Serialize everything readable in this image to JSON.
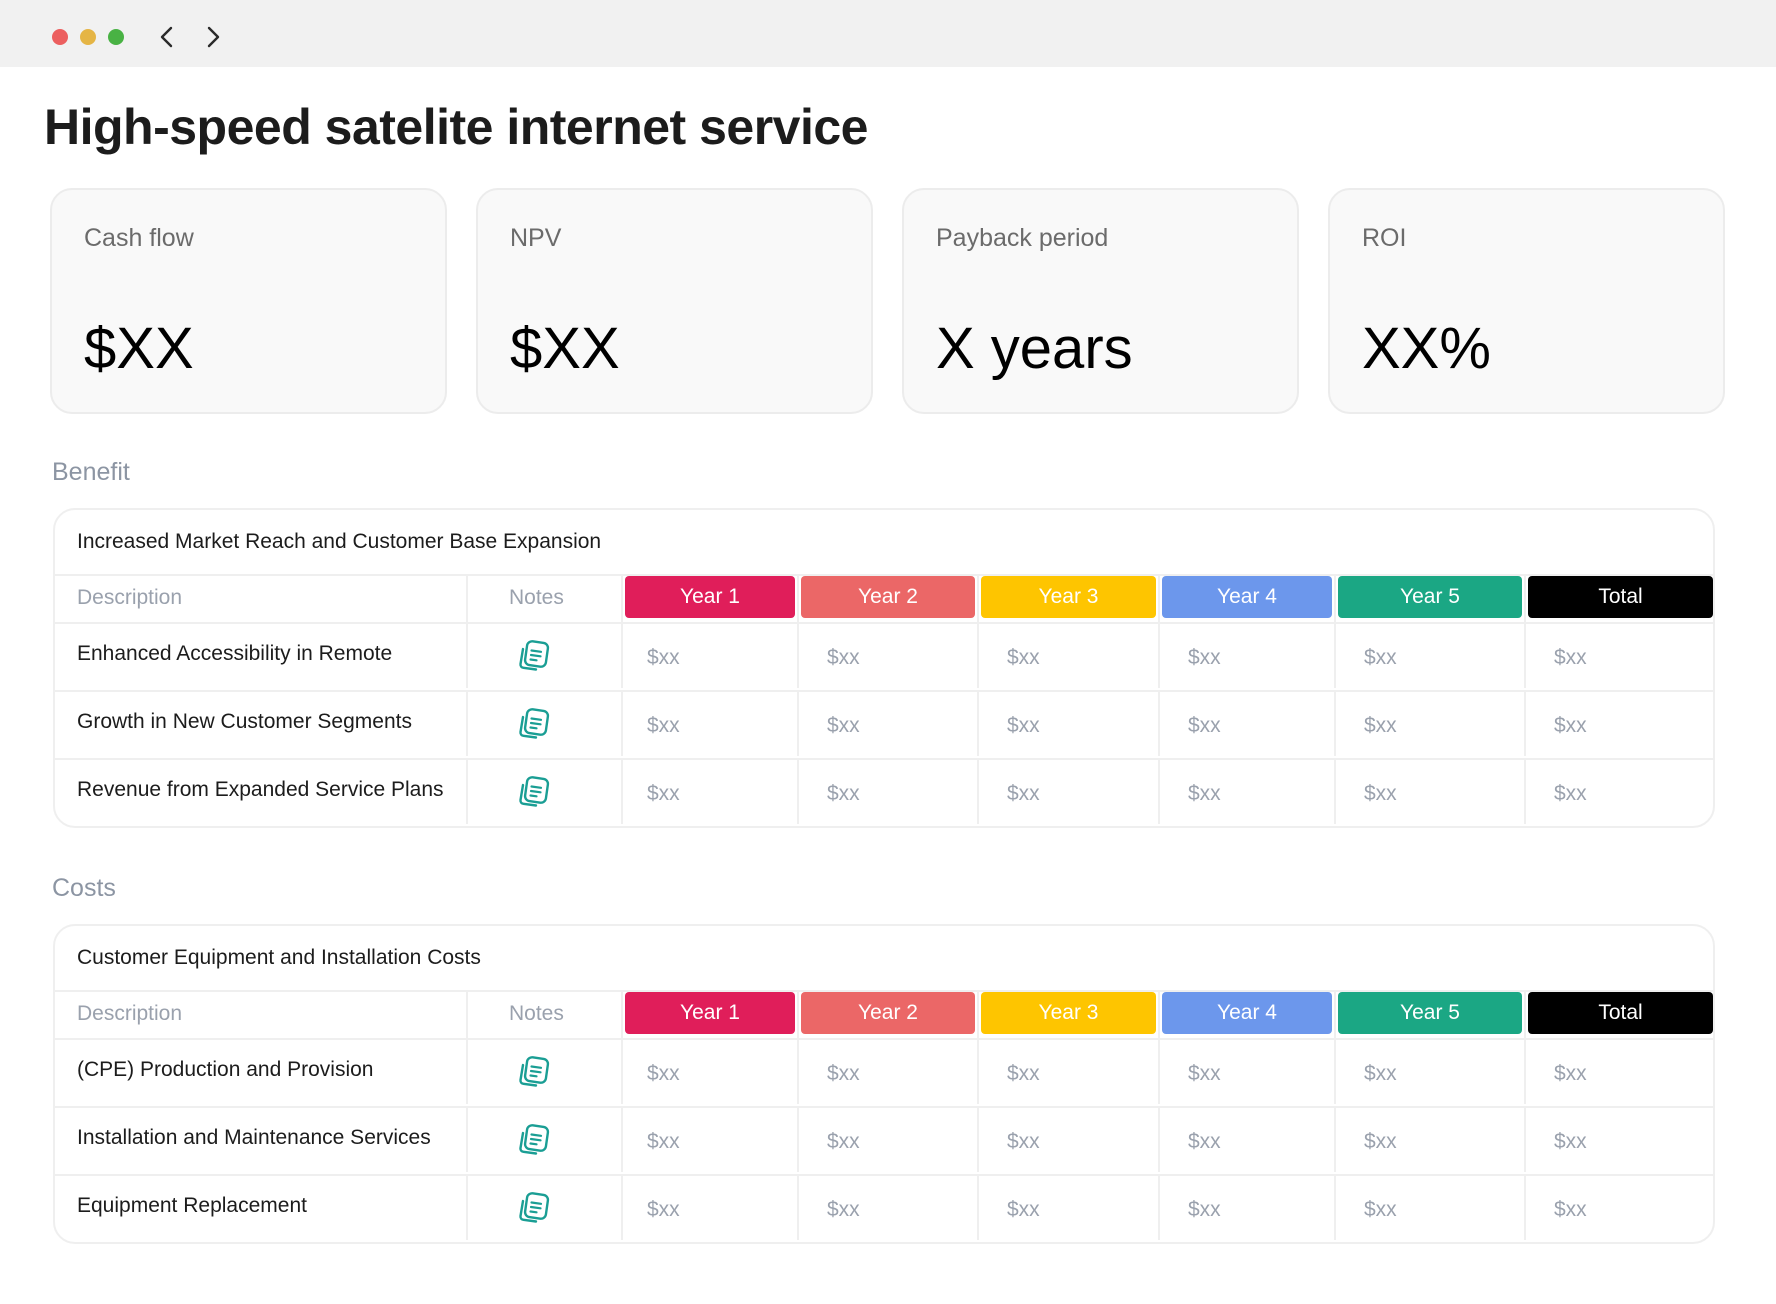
{
  "window": {
    "traffic_lights": {
      "close": "#ec5f5f",
      "minimize": "#e5b545",
      "maximize": "#49b244"
    },
    "nav": {
      "back_icon": "chevron-left-icon",
      "forward_icon": "chevron-right-icon"
    }
  },
  "page": {
    "title": "High-speed satelite internet service"
  },
  "kpis": [
    {
      "label": "Cash flow",
      "value": "$XX"
    },
    {
      "label": "NPV",
      "value": "$XX"
    },
    {
      "label": "Payback period",
      "value": "X years"
    },
    {
      "label": "ROI",
      "value": "XX%"
    }
  ],
  "columns": {
    "description": "Description",
    "notes": "Notes",
    "years": [
      {
        "label": "Year 1",
        "color": "#e01e5a"
      },
      {
        "label": "Year 2",
        "color": "#eb6767"
      },
      {
        "label": "Year 3",
        "color": "#fec500"
      },
      {
        "label": "Year 4",
        "color": "#6c97ec"
      },
      {
        "label": "Year 5",
        "color": "#1ba784"
      },
      {
        "label": "Total",
        "color": "#000000"
      }
    ]
  },
  "benefit": {
    "section_label": "Benefit",
    "group_title": "Increased Market Reach and Customer Base Expansion",
    "rows": [
      {
        "description": "Enhanced Accessibility in Remote",
        "values": [
          "$xx",
          "$xx",
          "$xx",
          "$xx",
          "$xx",
          "$xx"
        ]
      },
      {
        "description": "Growth in New Customer Segments",
        "values": [
          "$xx",
          "$xx",
          "$xx",
          "$xx",
          "$xx",
          "$xx"
        ]
      },
      {
        "description": "Revenue from Expanded Service Plans",
        "values": [
          "$xx",
          "$xx",
          "$xx",
          "$xx",
          "$xx",
          "$xx"
        ]
      }
    ]
  },
  "costs": {
    "section_label": "Costs",
    "group_title": "Customer Equipment and Installation Costs",
    "rows": [
      {
        "description": "(CPE) Production and Provision",
        "values": [
          "$xx",
          "$xx",
          "$xx",
          "$xx",
          "$xx",
          "$xx"
        ]
      },
      {
        "description": "Installation and Maintenance Services",
        "values": [
          "$xx",
          "$xx",
          "$xx",
          "$xx",
          "$xx",
          "$xx"
        ]
      },
      {
        "description": "Equipment Replacement",
        "values": [
          "$xx",
          "$xx",
          "$xx",
          "$xx",
          "$xx",
          "$xx"
        ]
      }
    ]
  },
  "icons": {
    "notes": "notes-icon",
    "notes_color": "#1a9e94"
  }
}
